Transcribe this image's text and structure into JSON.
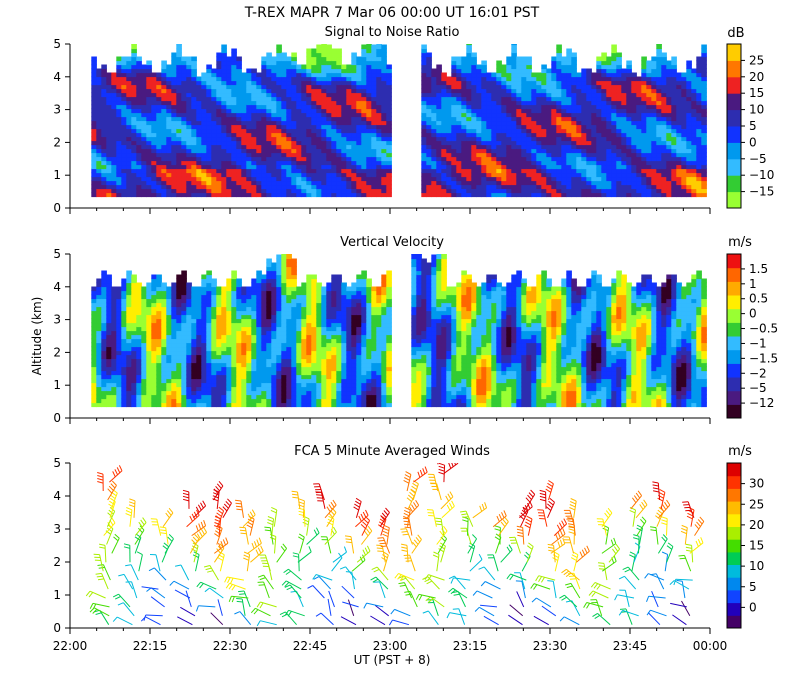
{
  "header": {
    "title": "T-REX   MAPR   7 Mar 06   00:00 UT   16:01   PST"
  },
  "axes": {
    "ylabel": "Altitude (km)",
    "xlabel": "UT  (PST + 8)",
    "x_ticks": [
      "22:00",
      "22:15",
      "22:30",
      "22:45",
      "23:00",
      "23:15",
      "23:30",
      "23:45",
      "00:00"
    ],
    "y_ticks": [
      "0",
      "1",
      "2",
      "3",
      "4",
      "5"
    ],
    "ylim": [
      0,
      5
    ],
    "xlim_minutes": [
      0,
      120
    ]
  },
  "chart_data": [
    {
      "id": "snr",
      "type": "heatmap",
      "title": "Signal to Noise Ratio",
      "unit": "dB",
      "xlabel": "UT  (PST + 8)",
      "ylabel": "Altitude (km)",
      "ylim": [
        0,
        5
      ],
      "data_gap_minutes": [
        60,
        65
      ],
      "colorbar": {
        "colors": [
          "#99ff33",
          "#33cc33",
          "#33bbff",
          "#0099ee",
          "#1133ff",
          "#2d2db0",
          "#4a1a80",
          "#ee2222",
          "#ff7700",
          "#ffcc00"
        ],
        "tick_labels": [
          "−15",
          "−10",
          "−5",
          "0",
          "5",
          "10",
          "15",
          "20",
          "25"
        ]
      }
    },
    {
      "id": "vvel",
      "type": "heatmap",
      "title": "Vertical Velocity",
      "unit": "m/s",
      "xlabel": "UT  (PST + 8)",
      "ylabel": "Altitude (km)",
      "ylim": [
        0,
        5
      ],
      "data_gap_minutes": [
        60,
        64
      ],
      "colorbar": {
        "colors": [
          "#330022",
          "#4a1a80",
          "#2d2db0",
          "#1133ff",
          "#0099ee",
          "#33bbff",
          "#33cc33",
          "#99ff33",
          "#ffee00",
          "#ffaa00",
          "#ff6600",
          "#ee1111"
        ],
        "tick_labels": [
          "−12",
          "−5",
          "−2",
          "−1.5",
          "−1",
          "−0.5",
          "0",
          "0.5",
          "1",
          "1.5"
        ]
      }
    },
    {
      "id": "winds",
      "type": "scatter",
      "title": "FCA 5 Minute Averaged Winds",
      "unit": "m/s",
      "xlabel": "UT  (PST + 8)",
      "ylabel": "Altitude (km)",
      "ylim": [
        0,
        5
      ],
      "colorbar": {
        "colors": [
          "#440066",
          "#2200bb",
          "#1144ff",
          "#0088ee",
          "#00bbdd",
          "#00cc55",
          "#44dd00",
          "#aaee00",
          "#ffee00",
          "#ffbb00",
          "#ff7700",
          "#ff3300",
          "#dd0000"
        ],
        "tick_labels": [
          "0",
          "5",
          "10",
          "15",
          "20",
          "25",
          "30"
        ]
      }
    }
  ]
}
